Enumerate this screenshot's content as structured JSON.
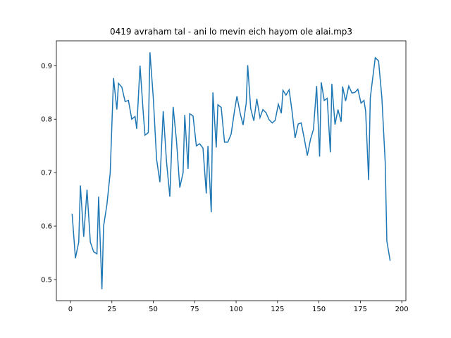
{
  "chart_data": {
    "type": "line",
    "title": "0419 avraham tal - ani lo mevin eich hayom ole alai.mp3",
    "x": [
      1,
      3,
      5,
      6,
      8,
      10,
      12,
      14,
      16,
      17,
      19,
      20,
      22,
      24,
      26,
      28,
      29,
      31,
      33,
      35,
      37,
      39,
      40,
      42,
      44,
      45,
      47,
      48,
      50,
      52,
      54,
      56,
      58,
      60,
      62,
      64,
      66,
      68,
      69,
      71,
      72,
      74,
      76,
      78,
      80,
      82,
      83,
      85,
      86,
      88,
      89,
      91,
      93,
      95,
      97,
      99,
      100.5,
      102.4,
      104.2,
      106.1,
      107,
      108.8,
      110.7,
      112.5,
      114.4,
      116.2,
      118.1,
      119.9,
      121.8,
      123.6,
      125.5,
      127.3,
      128.3,
      130.1,
      132,
      133.8,
      135.6,
      137.5,
      139.3,
      141.2,
      143,
      144.9,
      146.7,
      148.6,
      150.4,
      151.4,
      153.2,
      155,
      156.9,
      157.8,
      159.7,
      161.5,
      163.4,
      164.3,
      166.1,
      168,
      169.9,
      171.7,
      173.5,
      175.4,
      177.2,
      178.2,
      180,
      181,
      184,
      186,
      188,
      190,
      191,
      193
    ],
    "series": [
      {
        "color": "#1f77b4",
        "values": [
          0.623,
          0.54,
          0.57,
          0.676,
          0.58,
          0.668,
          0.57,
          0.552,
          0.548,
          0.655,
          0.482,
          0.6,
          0.64,
          0.7,
          0.877,
          0.818,
          0.867,
          0.86,
          0.833,
          0.835,
          0.8,
          0.805,
          0.782,
          0.9,
          0.81,
          0.77,
          0.775,
          0.925,
          0.84,
          0.725,
          0.682,
          0.815,
          0.72,
          0.655,
          0.823,
          0.76,
          0.672,
          0.7,
          0.808,
          0.707,
          0.81,
          0.806,
          0.75,
          0.754,
          0.746,
          0.661,
          0.75,
          0.626,
          0.85,
          0.747,
          0.827,
          0.822,
          0.757,
          0.757,
          0.772,
          0.815,
          0.843,
          0.812,
          0.789,
          0.83,
          0.901,
          0.82,
          0.797,
          0.838,
          0.803,
          0.818,
          0.812,
          0.799,
          0.793,
          0.798,
          0.828,
          0.811,
          0.854,
          0.845,
          0.855,
          0.814,
          0.765,
          0.791,
          0.793,
          0.763,
          0.732,
          0.762,
          0.781,
          0.862,
          0.73,
          0.869,
          0.835,
          0.839,
          0.738,
          0.866,
          0.79,
          0.818,
          0.795,
          0.861,
          0.834,
          0.862,
          0.849,
          0.85,
          0.856,
          0.83,
          0.835,
          0.815,
          0.686,
          0.84,
          0.915,
          0.909,
          0.84,
          0.72,
          0.572,
          0.535
        ]
      }
    ],
    "xlim": [
      -8.5,
      202.5
    ],
    "ylim": [
      0.4605,
      0.9465
    ],
    "xticks": [
      0,
      25,
      50,
      75,
      100,
      125,
      150,
      175,
      200
    ],
    "yticks": [
      0.5,
      0.6,
      0.7,
      0.8,
      0.9
    ]
  }
}
